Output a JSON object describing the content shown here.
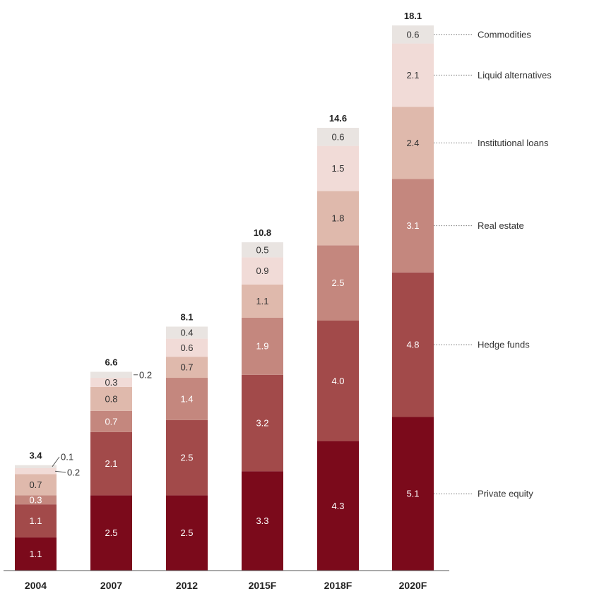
{
  "chart_data": {
    "type": "bar",
    "stacked": true,
    "title": "",
    "xlabel": "",
    "ylabel": "",
    "categories": [
      "2004",
      "2007",
      "2012",
      "2015F",
      "2018F",
      "2020F"
    ],
    "totals": [
      "3.4",
      "6.6",
      "8.1",
      "10.8",
      "14.6",
      "18.1"
    ],
    "series": [
      {
        "name": "Private equity",
        "values": [
          1.1,
          2.5,
          2.5,
          3.3,
          4.3,
          5.1
        ],
        "labels": [
          "1.1",
          "2.5",
          "2.5",
          "3.3",
          "4.3",
          "5.1"
        ],
        "color": "#7b0a1b",
        "text_color": "#ffffff"
      },
      {
        "name": "Hedge funds",
        "values": [
          1.1,
          2.1,
          2.5,
          3.2,
          4.0,
          4.8
        ],
        "labels": [
          "1.1",
          "2.1",
          "2.5",
          "3.2",
          "4.0",
          "4.8"
        ],
        "color": "#a24a4a",
        "text_color": "#ffffff"
      },
      {
        "name": "Real estate",
        "values": [
          0.3,
          0.7,
          1.4,
          1.9,
          2.5,
          3.1
        ],
        "labels": [
          "0.3",
          "0.7",
          "1.4",
          "1.9",
          "2.5",
          "3.1"
        ],
        "color": "#c4877e",
        "text_color": "#ffffff"
      },
      {
        "name": "Institutional loans",
        "values": [
          0.7,
          0.8,
          0.7,
          1.1,
          1.8,
          2.4
        ],
        "labels": [
          "0.7",
          "0.8",
          "0.7",
          "1.1",
          "1.8",
          "2.4"
        ],
        "color": "#dfb9ac",
        "text_color": "#333333"
      },
      {
        "name": "Liquid alternatives",
        "values": [
          0.2,
          0.3,
          0.6,
          0.9,
          1.5,
          2.1
        ],
        "labels": [
          "0.2",
          "0.3",
          "0.6",
          "0.9",
          "1.5",
          "2.1"
        ],
        "color": "#f1dbd7",
        "text_color": "#333333"
      },
      {
        "name": "Commodities",
        "values": [
          0.1,
          0.2,
          0.4,
          0.5,
          0.6,
          0.6
        ],
        "labels": [
          "0.1",
          "0.2",
          "0.4",
          "0.5",
          "0.6",
          "0.6"
        ],
        "color": "#e9e4e1",
        "text_color": "#333333"
      }
    ],
    "ylim": [
      0,
      18.1
    ],
    "grid": false,
    "legend": "right, aligned with 2020F segments"
  }
}
